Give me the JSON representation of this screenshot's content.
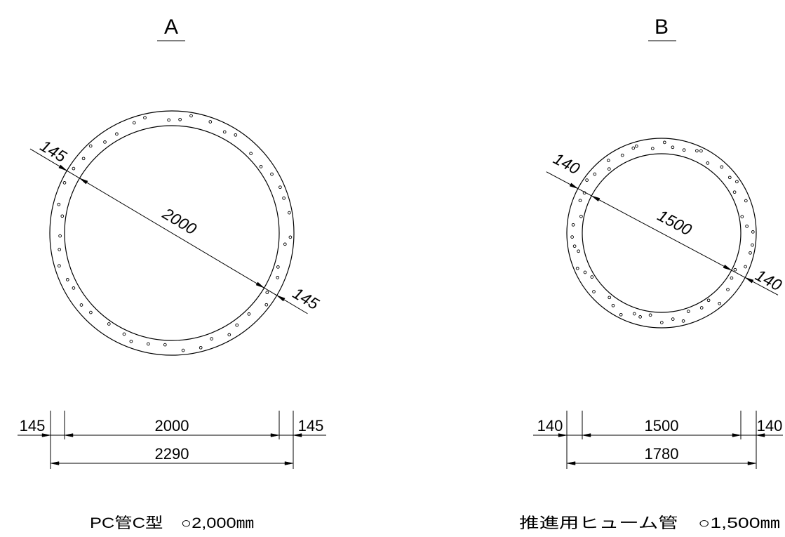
{
  "line_color": "#000000",
  "drawing_a": {
    "title": "A",
    "diag_wall_top": "145",
    "diag_inner": "2000",
    "diag_wall_bottom": "145",
    "dim_wall_left": "145",
    "dim_inner": "2000",
    "dim_wall_right": "145",
    "dim_outer": "2290",
    "caption": "PC管C型　○2,000㎜"
  },
  "drawing_b": {
    "title": "B",
    "diag_wall_top": "140",
    "diag_inner": "1500",
    "diag_wall_bottom": "140",
    "dim_wall_left": "140",
    "dim_inner": "1500",
    "dim_wall_right": "140",
    "dim_outer": "1780",
    "caption": "推進用ヒューム管　○1,500㎜"
  }
}
